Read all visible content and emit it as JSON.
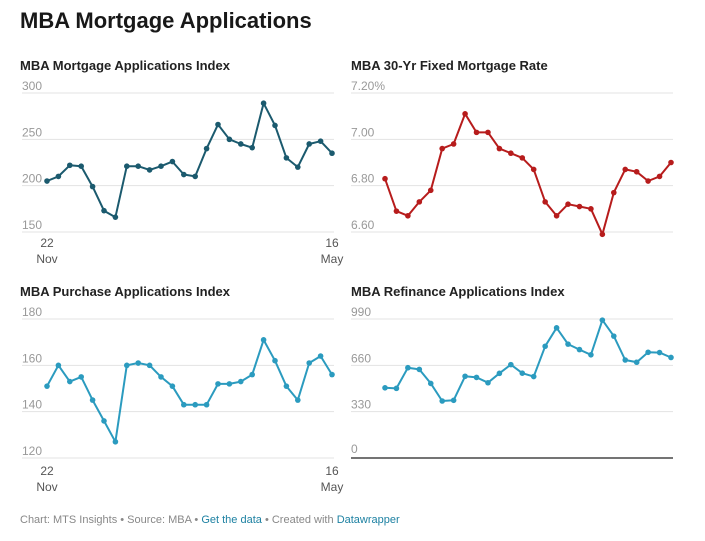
{
  "title": "MBA Mortgage Applications",
  "footer": {
    "chart_credit": "Chart: MTS Insights",
    "source": "Source: MBA",
    "get_data": "Get the data",
    "created_with": "Created with",
    "datawrapper": "Datawrapper",
    "sep": " • "
  },
  "colors": {
    "dark_teal": "#1b5a6e",
    "red": "#b71c1c",
    "teal": "#2b9bbf",
    "grid": "#e3e3e3",
    "axis_text": "#999999"
  },
  "chart_data": [
    {
      "type": "line",
      "title": "MBA Mortgage Applications Index",
      "color": "#1b5a6e",
      "ylim": [
        150,
        300
      ],
      "yticks": [
        {
          "value": 300,
          "label": "300"
        },
        {
          "value": 250,
          "label": "250"
        },
        {
          "value": 200,
          "label": "200"
        },
        {
          "value": 150,
          "label": "150"
        }
      ],
      "xtick_labels": [
        {
          "index": 1,
          "line1": "22",
          "line2": "Nov"
        },
        {
          "index": 26,
          "line1": "16",
          "line2": "May"
        }
      ],
      "baseline": false,
      "values": [
        205,
        210,
        222,
        221,
        199,
        173,
        166,
        221,
        221,
        217,
        221,
        226,
        212,
        210,
        240,
        266,
        250,
        245,
        241,
        289,
        265,
        230,
        220,
        245,
        248,
        235
      ]
    },
    {
      "type": "line",
      "title": "MBA 30-Yr Fixed Mortgage Rate",
      "color": "#b71c1c",
      "ylim": [
        6.6,
        7.2
      ],
      "yticks": [
        {
          "value": 7.2,
          "label": "7.20%"
        },
        {
          "value": 7.0,
          "label": "7.00"
        },
        {
          "value": 6.8,
          "label": "6.80"
        },
        {
          "value": 6.6,
          "label": "6.60"
        }
      ],
      "xtick_labels": [],
      "baseline": false,
      "values": [
        6.83,
        6.69,
        6.67,
        6.73,
        6.78,
        6.96,
        6.98,
        7.11,
        7.03,
        7.03,
        6.96,
        6.94,
        6.92,
        6.87,
        6.73,
        6.67,
        6.72,
        6.71,
        6.7,
        6.59,
        6.77,
        6.87,
        6.86,
        6.82,
        6.84,
        6.9
      ]
    },
    {
      "type": "line",
      "title": "MBA Purchase Applications Index",
      "color": "#2b9bbf",
      "ylim": [
        120,
        180
      ],
      "yticks": [
        {
          "value": 180,
          "label": "180"
        },
        {
          "value": 160,
          "label": "160"
        },
        {
          "value": 140,
          "label": "140"
        },
        {
          "value": 120,
          "label": "120"
        }
      ],
      "xtick_labels": [
        {
          "index": 1,
          "line1": "22",
          "line2": "Nov"
        },
        {
          "index": 26,
          "line1": "16",
          "line2": "May"
        }
      ],
      "baseline": false,
      "values": [
        151,
        160,
        153,
        155,
        145,
        136,
        127,
        160,
        161,
        160,
        155,
        151,
        143,
        143,
        143,
        152,
        152,
        153,
        156,
        171,
        162,
        151,
        145,
        161,
        164,
        156
      ]
    },
    {
      "type": "line",
      "title": "MBA Refinance Applications Index",
      "color": "#2b9bbf",
      "ylim": [
        0,
        990
      ],
      "yticks": [
        {
          "value": 990,
          "label": "990"
        },
        {
          "value": 660,
          "label": "660"
        },
        {
          "value": 330,
          "label": "330"
        },
        {
          "value": 0,
          "label": "0"
        }
      ],
      "xtick_labels": [],
      "baseline": true,
      "values": [
        500,
        496,
        643,
        631,
        531,
        406,
        411,
        582,
        574,
        536,
        603,
        665,
        604,
        580,
        796,
        927,
        811,
        772,
        735,
        982,
        868,
        698,
        682,
        753,
        751,
        716
      ]
    }
  ]
}
